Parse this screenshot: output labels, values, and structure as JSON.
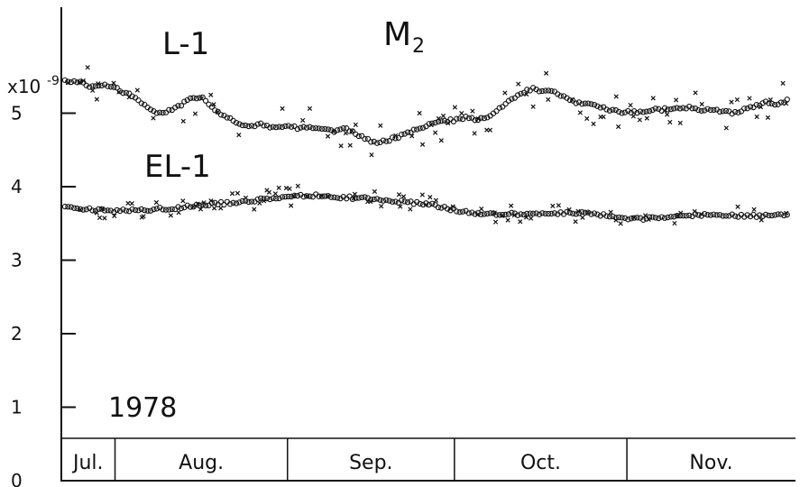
{
  "chart_data": {
    "type": "scatter",
    "title": "M",
    "title_subscript": "2",
    "multiplier_label": "x10",
    "multiplier_exponent": "-9",
    "year_label": "1978",
    "ylim": [
      0,
      6.1
    ],
    "yticks": [
      "0",
      "1",
      "2",
      "3",
      "4",
      "5"
    ],
    "xlim": [
      0,
      130
    ],
    "months": [
      {
        "label": "Jul.",
        "start": 0,
        "end": 9
      },
      {
        "label": "Aug.",
        "start": 9,
        "end": 40
      },
      {
        "label": "Sep.",
        "start": 40,
        "end": 70
      },
      {
        "label": "Oct.",
        "start": 70,
        "end": 101
      },
      {
        "label": "Nov.",
        "start": 101,
        "end": 130
      }
    ],
    "grid": false,
    "series": [
      {
        "name": "L-1",
        "marker_open": "circle",
        "marker_cross": "x",
        "spread": 0.12,
        "points": [
          [
            0,
            5.45
          ],
          [
            3,
            5.42
          ],
          [
            5,
            5.35
          ],
          [
            7,
            5.4
          ],
          [
            9,
            5.35
          ],
          [
            11,
            5.27
          ],
          [
            13,
            5.2
          ],
          [
            15,
            5.05
          ],
          [
            17,
            5.0
          ],
          [
            19,
            5.05
          ],
          [
            21,
            5.12
          ],
          [
            23,
            5.22
          ],
          [
            25,
            5.2
          ],
          [
            27,
            5.05
          ],
          [
            29,
            4.95
          ],
          [
            31,
            4.88
          ],
          [
            33,
            4.82
          ],
          [
            35,
            4.85
          ],
          [
            37,
            4.8
          ],
          [
            40,
            4.82
          ],
          [
            42,
            4.8
          ],
          [
            44,
            4.82
          ],
          [
            46,
            4.8
          ],
          [
            48,
            4.75
          ],
          [
            50,
            4.8
          ],
          [
            52,
            4.73
          ],
          [
            54,
            4.65
          ],
          [
            56,
            4.6
          ],
          [
            58,
            4.63
          ],
          [
            60,
            4.68
          ],
          [
            62,
            4.75
          ],
          [
            64,
            4.8
          ],
          [
            66,
            4.86
          ],
          [
            68,
            4.9
          ],
          [
            70,
            4.9
          ],
          [
            72,
            4.95
          ],
          [
            74,
            4.92
          ],
          [
            76,
            4.96
          ],
          [
            78,
            5.05
          ],
          [
            80,
            5.18
          ],
          [
            82,
            5.28
          ],
          [
            84,
            5.34
          ],
          [
            86,
            5.3
          ],
          [
            88,
            5.28
          ],
          [
            90,
            5.22
          ],
          [
            92,
            5.15
          ],
          [
            94,
            5.12
          ],
          [
            96,
            5.1
          ],
          [
            98,
            5.05
          ],
          [
            100,
            5.0
          ],
          [
            102,
            5.02
          ],
          [
            104,
            5.0
          ],
          [
            106,
            5.05
          ],
          [
            108,
            5.05
          ],
          [
            110,
            5.08
          ],
          [
            112,
            5.08
          ],
          [
            114,
            5.05
          ],
          [
            116,
            5.05
          ],
          [
            118,
            5.02
          ],
          [
            120,
            5.0
          ],
          [
            122,
            5.05
          ],
          [
            124,
            5.1
          ],
          [
            126,
            5.15
          ],
          [
            128,
            5.12
          ],
          [
            130,
            5.18
          ]
        ]
      },
      {
        "name": "EL-1",
        "marker_open": "circle",
        "marker_cross": "x",
        "spread": 0.06,
        "points": [
          [
            0,
            3.72
          ],
          [
            3,
            3.7
          ],
          [
            6,
            3.68
          ],
          [
            9,
            3.67
          ],
          [
            12,
            3.68
          ],
          [
            15,
            3.69
          ],
          [
            18,
            3.7
          ],
          [
            21,
            3.72
          ],
          [
            24,
            3.75
          ],
          [
            27,
            3.77
          ],
          [
            30,
            3.78
          ],
          [
            33,
            3.8
          ],
          [
            36,
            3.84
          ],
          [
            39,
            3.86
          ],
          [
            42,
            3.88
          ],
          [
            45,
            3.88
          ],
          [
            48,
            3.86
          ],
          [
            51,
            3.85
          ],
          [
            54,
            3.84
          ],
          [
            57,
            3.82
          ],
          [
            60,
            3.8
          ],
          [
            63,
            3.78
          ],
          [
            66,
            3.75
          ],
          [
            69,
            3.7
          ],
          [
            72,
            3.66
          ],
          [
            75,
            3.63
          ],
          [
            78,
            3.62
          ],
          [
            81,
            3.63
          ],
          [
            84,
            3.64
          ],
          [
            87,
            3.63
          ],
          [
            90,
            3.64
          ],
          [
            93,
            3.65
          ],
          [
            96,
            3.62
          ],
          [
            99,
            3.58
          ],
          [
            102,
            3.56
          ],
          [
            105,
            3.57
          ],
          [
            108,
            3.58
          ],
          [
            111,
            3.6
          ],
          [
            114,
            3.62
          ],
          [
            117,
            3.62
          ],
          [
            120,
            3.61
          ],
          [
            123,
            3.6
          ],
          [
            126,
            3.61
          ],
          [
            130,
            3.62
          ]
        ]
      }
    ]
  }
}
